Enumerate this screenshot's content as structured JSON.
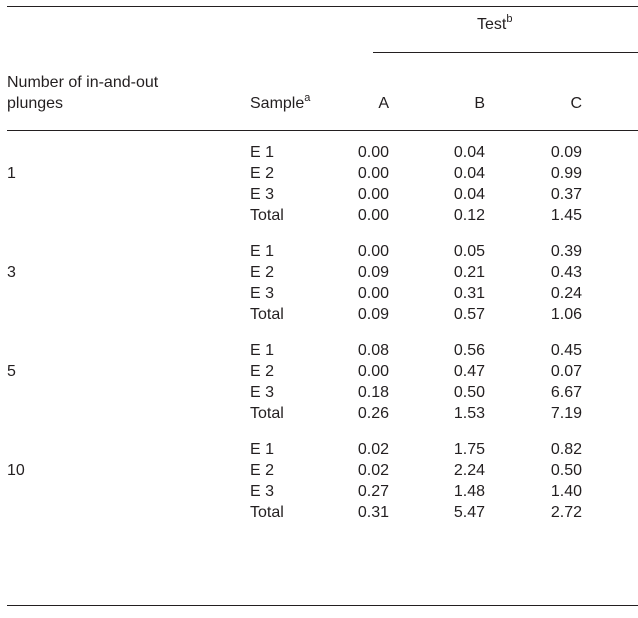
{
  "table": {
    "header": {
      "group_label": "Test",
      "group_note": "b",
      "row_header": [
        "Number of in-and-out",
        "plunges"
      ],
      "sample_header": "Sample",
      "sample_note": "a",
      "columns": [
        "A",
        "B",
        "C"
      ]
    },
    "groups": [
      {
        "plunges": "1",
        "rows": [
          {
            "sample": "E 1",
            "values": [
              "0.00",
              "0.04",
              "0.09"
            ]
          },
          {
            "sample": "E 2",
            "values": [
              "0.00",
              "0.04",
              "0.99"
            ]
          },
          {
            "sample": "E 3",
            "values": [
              "0.00",
              "0.04",
              "0.37"
            ]
          },
          {
            "sample": "Total",
            "values": [
              "0.00",
              "0.12",
              "1.45"
            ]
          }
        ]
      },
      {
        "plunges": "3",
        "rows": [
          {
            "sample": "E 1",
            "values": [
              "0.00",
              "0.05",
              "0.39"
            ]
          },
          {
            "sample": "E 2",
            "values": [
              "0.09",
              "0.21",
              "0.43"
            ]
          },
          {
            "sample": "E 3",
            "values": [
              "0.00",
              "0.31",
              "0.24"
            ]
          },
          {
            "sample": "Total",
            "values": [
              "0.09",
              "0.57",
              "1.06"
            ]
          }
        ]
      },
      {
        "plunges": "5",
        "rows": [
          {
            "sample": "E 1",
            "values": [
              "0.08",
              "0.56",
              "0.45"
            ]
          },
          {
            "sample": "E 2",
            "values": [
              "0.00",
              "0.47",
              "0.07"
            ]
          },
          {
            "sample": "E 3",
            "values": [
              "0.18",
              "0.50",
              "6.67"
            ]
          },
          {
            "sample": "Total",
            "values": [
              "0.26",
              "1.53",
              "7.19"
            ]
          }
        ]
      },
      {
        "plunges": "10",
        "rows": [
          {
            "sample": "E 1",
            "values": [
              "0.02",
              "1.75",
              "0.82"
            ]
          },
          {
            "sample": "E 2",
            "values": [
              "0.02",
              "2.24",
              "0.50"
            ]
          },
          {
            "sample": "E 3",
            "values": [
              "0.27",
              "1.48",
              "1.40"
            ]
          },
          {
            "sample": "Total",
            "values": [
              "0.31",
              "5.47",
              "2.72"
            ]
          }
        ]
      }
    ]
  }
}
